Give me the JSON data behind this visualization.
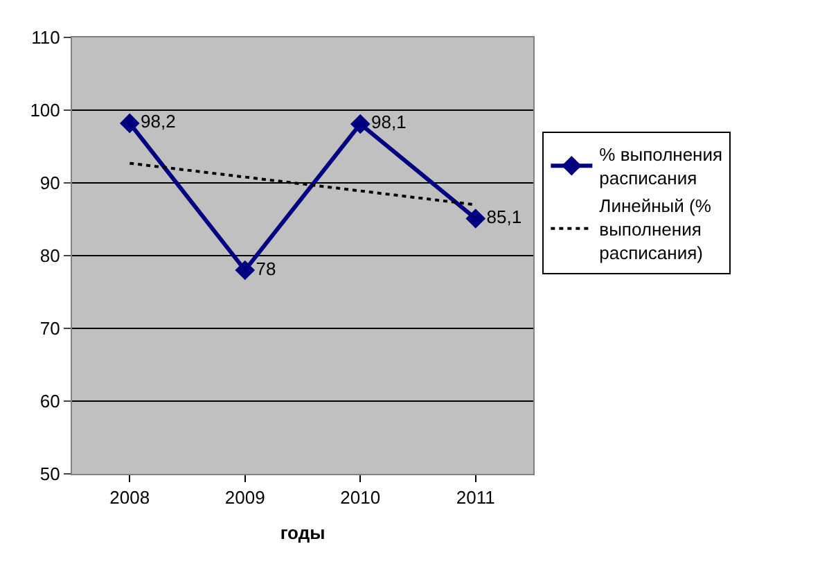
{
  "chart_data": {
    "type": "line",
    "xlabel": "годы",
    "categories": [
      "2008",
      "2009",
      "2010",
      "2011"
    ],
    "series": [
      {
        "name": "% выполнения расписания",
        "color": "#000080",
        "values": [
          98.2,
          78,
          98.1,
          85.1
        ],
        "marker": "diamond",
        "line_style": "solid",
        "value_labels": [
          "98,2",
          "78",
          "98,1",
          "85,1"
        ]
      },
      {
        "name": "Линейный (% выполнения расписания)",
        "color": "#000000",
        "values": [
          92.7,
          90.8,
          88.9,
          87.0
        ],
        "marker": "none",
        "line_style": "dotted"
      }
    ],
    "ylim": [
      50,
      110
    ],
    "yticks": [
      50,
      60,
      70,
      80,
      90,
      100,
      110
    ],
    "grid": "y",
    "legend": "right"
  }
}
